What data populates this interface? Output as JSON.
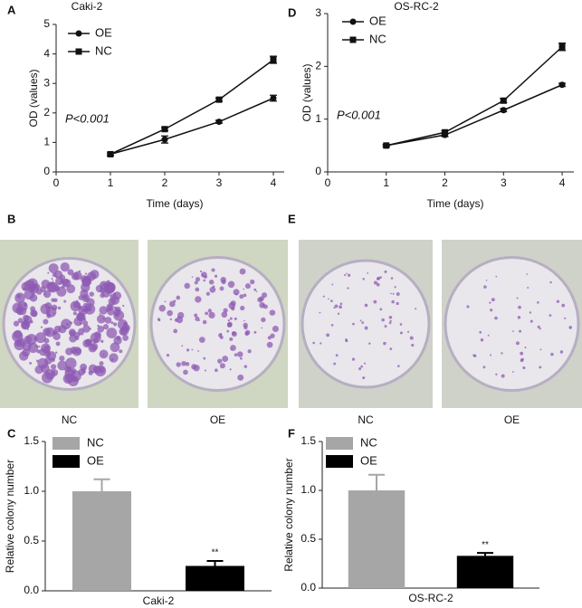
{
  "chart_data": [
    {
      "type": "line",
      "panel": "A",
      "title": "Caki-2",
      "xlabel": "Time (days)",
      "ylabel": "OD (values)",
      "annotation": "P<0.001",
      "x": [
        1,
        2,
        3,
        4
      ],
      "xlim": [
        0,
        4.2
      ],
      "xticks": [
        0,
        1,
        2,
        3,
        4
      ],
      "ylim": [
        0,
        5
      ],
      "yticks": [
        0,
        1,
        2,
        3,
        4,
        5
      ],
      "series": [
        {
          "name": "OE",
          "color": "#111111",
          "marker": "circle",
          "values": [
            0.6,
            1.1,
            1.7,
            2.5
          ],
          "errors": [
            0.04,
            0.12,
            0.05,
            0.1
          ]
        },
        {
          "name": "NC",
          "color": "#111111",
          "marker": "square",
          "values": [
            0.6,
            1.45,
            2.45,
            3.8
          ],
          "errors": [
            0.04,
            0.05,
            0.05,
            0.12
          ]
        }
      ]
    },
    {
      "type": "line",
      "panel": "D",
      "title": "OS-RC-2",
      "xlabel": "Time (days)",
      "ylabel": "OD (values)",
      "annotation": "P<0.001",
      "x": [
        1,
        2,
        3,
        4
      ],
      "xlim": [
        0,
        4.2
      ],
      "xticks": [
        0,
        1,
        2,
        3,
        4
      ],
      "ylim": [
        0,
        3
      ],
      "yticks": [
        0,
        1,
        2,
        3
      ],
      "series": [
        {
          "name": "OE",
          "color": "#111111",
          "marker": "circle",
          "values": [
            0.5,
            0.7,
            1.17,
            1.65
          ],
          "errors": [
            0.02,
            0.03,
            0.03,
            0.03
          ]
        },
        {
          "name": "NC",
          "color": "#111111",
          "marker": "square",
          "values": [
            0.5,
            0.75,
            1.35,
            2.37
          ],
          "errors": [
            0.02,
            0.03,
            0.04,
            0.07
          ]
        }
      ]
    },
    {
      "type": "bar",
      "panel": "C",
      "xlabel": "Caki-2",
      "ylabel": "Relative colony number",
      "annotation": "**",
      "ylim": [
        0,
        1.5
      ],
      "yticks": [
        {
          "value": 0,
          "label": "0.0"
        },
        0.5,
        {
          "value": 1,
          "label": "1.0"
        },
        1.5
      ],
      "series": [
        {
          "name": "NC",
          "color": "#a6a6a6",
          "values": [
            1.0
          ],
          "errors": [
            0.12
          ]
        },
        {
          "name": "OE",
          "color": "#000000",
          "values": [
            0.25
          ],
          "errors": [
            0.05
          ]
        }
      ]
    },
    {
      "type": "bar",
      "panel": "F",
      "xlabel": "OS-RC-2",
      "ylabel": "Relative colony number",
      "annotation": "**",
      "ylim": [
        0,
        1.5
      ],
      "yticks": [
        {
          "value": 0,
          "label": "0.0"
        },
        0.5,
        {
          "value": 1,
          "label": "1.0"
        },
        1.5
      ],
      "series": [
        {
          "name": "NC",
          "color": "#a6a6a6",
          "values": [
            1.0
          ],
          "errors": [
            0.16
          ]
        },
        {
          "name": "OE",
          "color": "#000000",
          "values": [
            0.33
          ],
          "errors": [
            0.03
          ]
        }
      ]
    }
  ],
  "images": [
    {
      "panel": "B",
      "labels": [
        "NC",
        "OE"
      ]
    },
    {
      "panel": "E",
      "labels": [
        "NC",
        "OE"
      ]
    }
  ]
}
